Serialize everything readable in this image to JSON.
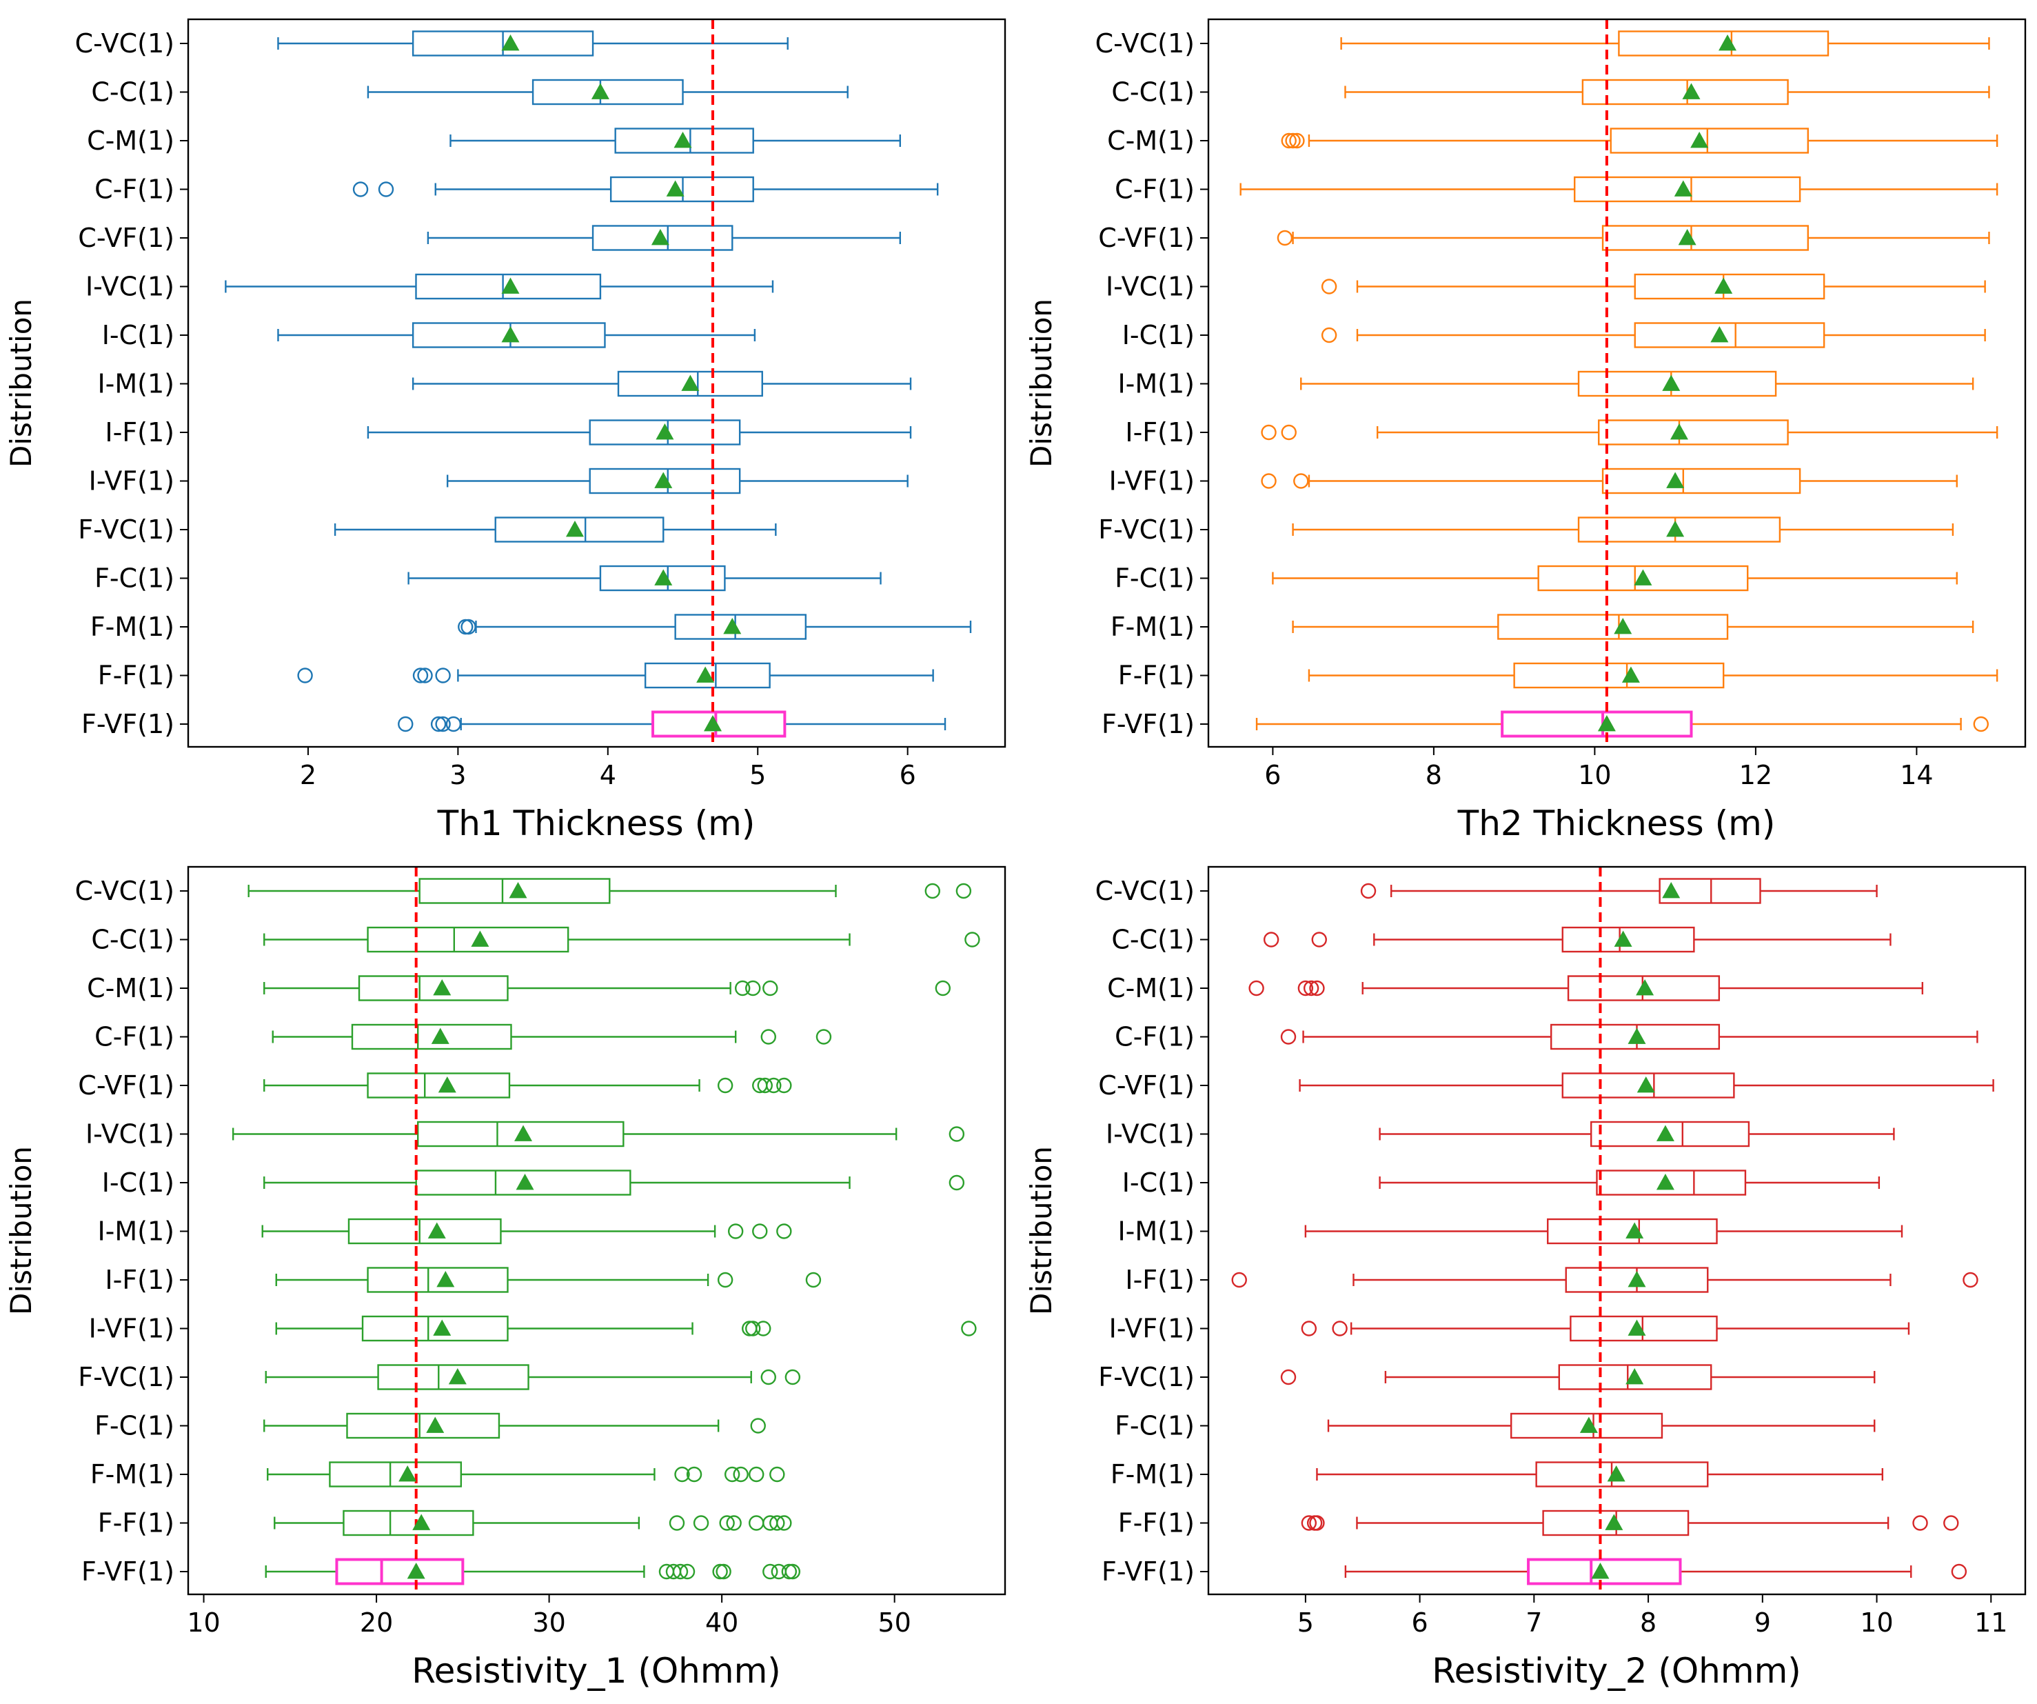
{
  "figure": {
    "ylabel": "Distribution"
  },
  "chart_data": [
    {
      "type": "boxplot",
      "orientation": "horizontal",
      "title": "",
      "xlabel": "Th1 Thickness (m)",
      "ylabel": "Distribution",
      "xlim": [
        1.2,
        6.65
      ],
      "xticks": [
        2,
        3,
        4,
        5,
        6
      ],
      "tick_labels": [
        "2",
        "3",
        "4",
        "5",
        "6"
      ],
      "color": "#1f77b4",
      "true_value": 4.7,
      "reference_line_color": "#ff0000",
      "mean_marker_color": "#2ca02c",
      "highlight_color": "#ff33cc",
      "categories": [
        "C-VC(1)",
        "C-C(1)",
        "C-M(1)",
        "C-F(1)",
        "C-VF(1)",
        "I-VC(1)",
        "I-C(1)",
        "I-M(1)",
        "I-F(1)",
        "I-VF(1)",
        "F-VC(1)",
        "F-C(1)",
        "F-M(1)",
        "F-F(1)",
        "F-VF(1)"
      ],
      "boxes": [
        {
          "whislo": 1.8,
          "q1": 2.7,
          "median": 3.3,
          "q3": 3.9,
          "whishi": 5.2,
          "mean": 3.35,
          "fliers": [],
          "highlight": false
        },
        {
          "whislo": 2.4,
          "q1": 3.5,
          "median": 3.95,
          "q3": 4.5,
          "whishi": 5.6,
          "mean": 3.95,
          "fliers": [],
          "highlight": false
        },
        {
          "whislo": 2.95,
          "q1": 4.05,
          "median": 4.55,
          "q3": 4.97,
          "whishi": 5.95,
          "mean": 4.5,
          "fliers": [],
          "highlight": false
        },
        {
          "whislo": 2.85,
          "q1": 4.02,
          "median": 4.5,
          "q3": 4.97,
          "whishi": 6.2,
          "mean": 4.45,
          "fliers": [
            2.35,
            2.52
          ],
          "highlight": false
        },
        {
          "whislo": 2.8,
          "q1": 3.9,
          "median": 4.4,
          "q3": 4.83,
          "whishi": 5.95,
          "mean": 4.35,
          "fliers": [],
          "highlight": false
        },
        {
          "whislo": 1.45,
          "q1": 2.72,
          "median": 3.3,
          "q3": 3.95,
          "whishi": 5.1,
          "mean": 3.35,
          "fliers": [],
          "highlight": false
        },
        {
          "whislo": 1.8,
          "q1": 2.7,
          "median": 3.35,
          "q3": 3.98,
          "whishi": 4.98,
          "mean": 3.35,
          "fliers": [],
          "highlight": false
        },
        {
          "whislo": 2.7,
          "q1": 4.07,
          "median": 4.6,
          "q3": 5.03,
          "whishi": 6.02,
          "mean": 4.55,
          "fliers": [],
          "highlight": false
        },
        {
          "whislo": 2.4,
          "q1": 3.88,
          "median": 4.4,
          "q3": 4.88,
          "whishi": 6.02,
          "mean": 4.38,
          "fliers": [],
          "highlight": false
        },
        {
          "whislo": 2.93,
          "q1": 3.88,
          "median": 4.4,
          "q3": 4.88,
          "whishi": 6.0,
          "mean": 4.37,
          "fliers": [],
          "highlight": false
        },
        {
          "whislo": 2.18,
          "q1": 3.25,
          "median": 3.85,
          "q3": 4.37,
          "whishi": 5.12,
          "mean": 3.78,
          "fliers": [],
          "highlight": false
        },
        {
          "whislo": 2.67,
          "q1": 3.95,
          "median": 4.4,
          "q3": 4.78,
          "whishi": 5.82,
          "mean": 4.37,
          "fliers": [],
          "highlight": false
        },
        {
          "whislo": 3.12,
          "q1": 4.45,
          "median": 4.85,
          "q3": 5.32,
          "whishi": 6.42,
          "mean": 4.83,
          "fliers": [
            3.05,
            3.07
          ],
          "highlight": false
        },
        {
          "whislo": 3.0,
          "q1": 4.25,
          "median": 4.72,
          "q3": 5.08,
          "whishi": 6.17,
          "mean": 4.65,
          "fliers": [
            1.98,
            2.75,
            2.78,
            2.9
          ],
          "highlight": false
        },
        {
          "whislo": 3.02,
          "q1": 4.3,
          "median": 4.72,
          "q3": 5.18,
          "whishi": 6.25,
          "mean": 4.7,
          "fliers": [
            2.65,
            2.87,
            2.9,
            2.97
          ],
          "highlight": true
        }
      ]
    },
    {
      "type": "boxplot",
      "orientation": "horizontal",
      "title": "",
      "xlabel": "Th2 Thickness (m)",
      "ylabel": "Distribution",
      "xlim": [
        5.2,
        15.35
      ],
      "xticks": [
        6,
        8,
        10,
        12,
        14
      ],
      "tick_labels": [
        "6",
        "8",
        "10",
        "12",
        "14"
      ],
      "color": "#ff7f0e",
      "true_value": 10.15,
      "reference_line_color": "#ff0000",
      "mean_marker_color": "#2ca02c",
      "highlight_color": "#ff33cc",
      "categories": [
        "C-VC(1)",
        "C-C(1)",
        "C-M(1)",
        "C-F(1)",
        "C-VF(1)",
        "I-VC(1)",
        "I-C(1)",
        "I-M(1)",
        "I-F(1)",
        "I-VF(1)",
        "F-VC(1)",
        "F-C(1)",
        "F-M(1)",
        "F-F(1)",
        "F-VF(1)"
      ],
      "boxes": [
        {
          "whislo": 6.85,
          "q1": 10.3,
          "median": 11.7,
          "q3": 12.9,
          "whishi": 14.9,
          "mean": 11.65,
          "fliers": [],
          "highlight": false
        },
        {
          "whislo": 6.9,
          "q1": 9.85,
          "median": 11.15,
          "q3": 12.4,
          "whishi": 14.9,
          "mean": 11.2,
          "fliers": [],
          "highlight": false
        },
        {
          "whislo": 6.45,
          "q1": 10.2,
          "median": 11.4,
          "q3": 12.65,
          "whishi": 15.0,
          "mean": 11.3,
          "fliers": [
            6.2,
            6.25,
            6.3
          ],
          "highlight": false
        },
        {
          "whislo": 5.6,
          "q1": 9.75,
          "median": 11.2,
          "q3": 12.55,
          "whishi": 15.0,
          "mean": 11.1,
          "fliers": [],
          "highlight": false
        },
        {
          "whislo": 6.25,
          "q1": 10.1,
          "median": 11.2,
          "q3": 12.65,
          "whishi": 14.9,
          "mean": 11.15,
          "fliers": [
            6.15
          ],
          "highlight": false
        },
        {
          "whislo": 7.05,
          "q1": 10.5,
          "median": 11.6,
          "q3": 12.85,
          "whishi": 14.85,
          "mean": 11.6,
          "fliers": [
            6.7
          ],
          "highlight": false
        },
        {
          "whislo": 7.05,
          "q1": 10.5,
          "median": 11.75,
          "q3": 12.85,
          "whishi": 14.85,
          "mean": 11.55,
          "fliers": [
            6.7
          ],
          "highlight": false
        },
        {
          "whislo": 6.35,
          "q1": 9.8,
          "median": 10.95,
          "q3": 12.25,
          "whishi": 14.7,
          "mean": 10.95,
          "fliers": [],
          "highlight": false
        },
        {
          "whislo": 7.3,
          "q1": 10.05,
          "median": 11.05,
          "q3": 12.4,
          "whishi": 15.0,
          "mean": 11.05,
          "fliers": [
            5.95,
            6.2
          ],
          "highlight": false
        },
        {
          "whislo": 6.45,
          "q1": 10.1,
          "median": 11.1,
          "q3": 12.55,
          "whishi": 14.5,
          "mean": 11.0,
          "fliers": [
            5.95,
            6.35
          ],
          "highlight": false
        },
        {
          "whislo": 6.25,
          "q1": 9.8,
          "median": 11.0,
          "q3": 12.3,
          "whishi": 14.45,
          "mean": 11.0,
          "fliers": [],
          "highlight": false
        },
        {
          "whislo": 6.0,
          "q1": 9.3,
          "median": 10.5,
          "q3": 11.9,
          "whishi": 14.5,
          "mean": 10.6,
          "fliers": [],
          "highlight": false
        },
        {
          "whislo": 6.25,
          "q1": 8.8,
          "median": 10.3,
          "q3": 11.65,
          "whishi": 14.7,
          "mean": 10.35,
          "fliers": [],
          "highlight": false
        },
        {
          "whislo": 6.45,
          "q1": 9.0,
          "median": 10.4,
          "q3": 11.6,
          "whishi": 15.0,
          "mean": 10.45,
          "fliers": [],
          "highlight": false
        },
        {
          "whislo": 5.8,
          "q1": 8.85,
          "median": 10.1,
          "q3": 11.2,
          "whishi": 14.55,
          "mean": 10.15,
          "fliers": [
            14.8
          ],
          "highlight": true
        }
      ]
    },
    {
      "type": "boxplot",
      "orientation": "horizontal",
      "title": "",
      "xlabel": "Resistivity_1 (Ohmm)",
      "ylabel": "Distribution",
      "xlim": [
        9.1,
        56.4
      ],
      "xticks": [
        10,
        20,
        30,
        40,
        50
      ],
      "tick_labels": [
        "10",
        "20",
        "30",
        "40",
        "50"
      ],
      "color": "#2ca02c",
      "true_value": 22.3,
      "reference_line_color": "#ff0000",
      "mean_marker_color": "#2ca02c",
      "highlight_color": "#ff33cc",
      "categories": [
        "C-VC(1)",
        "C-C(1)",
        "C-M(1)",
        "C-F(1)",
        "C-VF(1)",
        "I-VC(1)",
        "I-C(1)",
        "I-M(1)",
        "I-F(1)",
        "I-VF(1)",
        "F-VC(1)",
        "F-C(1)",
        "F-M(1)",
        "F-F(1)",
        "F-VF(1)"
      ],
      "boxes": [
        {
          "whislo": 12.6,
          "q1": 22.5,
          "median": 27.3,
          "q3": 33.5,
          "whishi": 46.6,
          "mean": 28.2,
          "fliers": [
            52.2,
            54.0
          ],
          "highlight": false
        },
        {
          "whislo": 13.5,
          "q1": 19.5,
          "median": 24.5,
          "q3": 31.1,
          "whishi": 47.4,
          "mean": 26.0,
          "fliers": [
            54.5
          ],
          "highlight": false
        },
        {
          "whislo": 13.5,
          "q1": 19.0,
          "median": 22.5,
          "q3": 27.6,
          "whishi": 40.5,
          "mean": 23.8,
          "fliers": [
            41.2,
            41.8,
            42.8,
            52.8
          ],
          "highlight": false
        },
        {
          "whislo": 14.0,
          "q1": 18.6,
          "median": 22.4,
          "q3": 27.8,
          "whishi": 40.8,
          "mean": 23.7,
          "fliers": [
            42.7,
            45.9
          ],
          "highlight": false
        },
        {
          "whislo": 13.5,
          "q1": 19.5,
          "median": 22.8,
          "q3": 27.7,
          "whishi": 38.7,
          "mean": 24.1,
          "fliers": [
            40.2,
            42.2,
            42.5,
            43.0,
            43.6
          ],
          "highlight": false
        },
        {
          "whislo": 11.7,
          "q1": 22.4,
          "median": 27.0,
          "q3": 34.3,
          "whishi": 50.1,
          "mean": 28.5,
          "fliers": [
            53.6
          ],
          "highlight": false
        },
        {
          "whislo": 13.5,
          "q1": 22.3,
          "median": 26.9,
          "q3": 34.7,
          "whishi": 47.4,
          "mean": 28.6,
          "fliers": [
            53.6
          ],
          "highlight": false
        },
        {
          "whislo": 13.4,
          "q1": 18.4,
          "median": 22.5,
          "q3": 27.2,
          "whishi": 39.6,
          "mean": 23.5,
          "fliers": [
            40.8,
            42.2,
            43.6
          ],
          "highlight": false
        },
        {
          "whislo": 14.2,
          "q1": 19.5,
          "median": 23.0,
          "q3": 27.6,
          "whishi": 39.2,
          "mean": 24.0,
          "fliers": [
            40.2,
            45.3
          ],
          "highlight": false
        },
        {
          "whislo": 14.2,
          "q1": 19.2,
          "median": 23.0,
          "q3": 27.6,
          "whishi": 38.3,
          "mean": 23.8,
          "fliers": [
            41.6,
            41.8,
            42.4,
            54.3
          ],
          "highlight": false
        },
        {
          "whislo": 13.6,
          "q1": 20.1,
          "median": 23.6,
          "q3": 28.8,
          "whishi": 41.7,
          "mean": 24.7,
          "fliers": [
            42.7,
            44.1
          ],
          "highlight": false
        },
        {
          "whislo": 13.5,
          "q1": 18.3,
          "median": 22.5,
          "q3": 27.1,
          "whishi": 39.8,
          "mean": 23.4,
          "fliers": [
            42.1
          ],
          "highlight": false
        },
        {
          "whislo": 13.7,
          "q1": 17.3,
          "median": 20.8,
          "q3": 24.9,
          "whishi": 36.1,
          "mean": 21.8,
          "fliers": [
            37.7,
            38.4,
            40.6,
            41.1,
            42.0,
            43.2
          ],
          "highlight": false
        },
        {
          "whislo": 14.1,
          "q1": 18.1,
          "median": 20.8,
          "q3": 25.6,
          "whishi": 35.2,
          "mean": 22.6,
          "fliers": [
            37.4,
            38.8,
            40.3,
            40.7,
            42.0,
            42.8,
            43.2,
            43.6
          ],
          "highlight": false
        },
        {
          "whislo": 13.6,
          "q1": 17.7,
          "median": 20.3,
          "q3": 25.0,
          "whishi": 35.5,
          "mean": 22.3,
          "fliers": [
            36.8,
            37.2,
            37.6,
            38.0,
            39.9,
            40.1,
            42.8,
            43.3,
            43.9,
            44.1
          ],
          "highlight": true
        }
      ]
    },
    {
      "type": "boxplot",
      "orientation": "horizontal",
      "title": "",
      "xlabel": "Resistivity_2 (Ohmm)",
      "ylabel": "Distribution",
      "xlim": [
        4.15,
        11.3
      ],
      "xticks": [
        5,
        6,
        7,
        8,
        9,
        10,
        11
      ],
      "tick_labels": [
        "5",
        "6",
        "7",
        "8",
        "9",
        "10",
        "11"
      ],
      "color": "#d62728",
      "true_value": 7.58,
      "reference_line_color": "#ff0000",
      "mean_marker_color": "#2ca02c",
      "highlight_color": "#ff33cc",
      "categories": [
        "C-VC(1)",
        "C-C(1)",
        "C-M(1)",
        "C-F(1)",
        "C-VF(1)",
        "I-VC(1)",
        "I-C(1)",
        "I-M(1)",
        "I-F(1)",
        "I-VF(1)",
        "F-VC(1)",
        "F-C(1)",
        "F-M(1)",
        "F-F(1)",
        "F-VF(1)"
      ],
      "boxes": [
        {
          "whislo": 5.75,
          "q1": 8.1,
          "median": 8.55,
          "q3": 8.98,
          "whishi": 10.0,
          "mean": 8.2,
          "fliers": [
            5.55
          ],
          "highlight": false
        },
        {
          "whislo": 5.6,
          "q1": 7.25,
          "median": 7.75,
          "q3": 8.4,
          "whishi": 10.12,
          "mean": 7.78,
          "fliers": [
            4.7,
            5.12
          ],
          "highlight": false
        },
        {
          "whislo": 5.5,
          "q1": 7.3,
          "median": 7.95,
          "q3": 8.62,
          "whishi": 10.4,
          "mean": 7.97,
          "fliers": [
            4.57,
            5.0,
            5.05,
            5.1
          ],
          "highlight": false
        },
        {
          "whislo": 4.98,
          "q1": 7.15,
          "median": 7.9,
          "q3": 8.62,
          "whishi": 10.88,
          "mean": 7.9,
          "fliers": [
            4.85
          ],
          "highlight": false
        },
        {
          "whislo": 4.95,
          "q1": 7.25,
          "median": 8.05,
          "q3": 8.75,
          "whishi": 11.02,
          "mean": 7.98,
          "fliers": [],
          "highlight": false
        },
        {
          "whislo": 5.65,
          "q1": 7.5,
          "median": 8.3,
          "q3": 8.88,
          "whishi": 10.15,
          "mean": 8.15,
          "fliers": [],
          "highlight": false
        },
        {
          "whislo": 5.65,
          "q1": 7.55,
          "median": 8.4,
          "q3": 8.85,
          "whishi": 10.02,
          "mean": 8.15,
          "fliers": [],
          "highlight": false
        },
        {
          "whislo": 5.0,
          "q1": 7.12,
          "median": 7.92,
          "q3": 8.6,
          "whishi": 10.22,
          "mean": 7.88,
          "fliers": [],
          "highlight": false
        },
        {
          "whislo": 5.42,
          "q1": 7.28,
          "median": 7.9,
          "q3": 8.52,
          "whishi": 10.12,
          "mean": 7.9,
          "fliers": [
            4.42,
            10.82
          ],
          "highlight": false
        },
        {
          "whislo": 5.4,
          "q1": 7.32,
          "median": 7.95,
          "q3": 8.6,
          "whishi": 10.28,
          "mean": 7.9,
          "fliers": [
            5.03,
            5.3
          ],
          "highlight": false
        },
        {
          "whislo": 5.7,
          "q1": 7.22,
          "median": 7.82,
          "q3": 8.55,
          "whishi": 9.98,
          "mean": 7.88,
          "fliers": [
            4.85
          ],
          "highlight": false
        },
        {
          "whislo": 5.2,
          "q1": 6.8,
          "median": 7.52,
          "q3": 8.12,
          "whishi": 9.98,
          "mean": 7.48,
          "fliers": [],
          "highlight": false
        },
        {
          "whislo": 5.1,
          "q1": 7.02,
          "median": 7.68,
          "q3": 8.52,
          "whishi": 10.05,
          "mean": 7.72,
          "fliers": [],
          "highlight": false
        },
        {
          "whislo": 5.45,
          "q1": 7.08,
          "median": 7.72,
          "q3": 8.35,
          "whishi": 10.1,
          "mean": 7.7,
          "fliers": [
            5.03,
            5.08,
            5.1,
            10.38,
            10.65
          ],
          "highlight": false
        },
        {
          "whislo": 5.35,
          "q1": 6.95,
          "median": 7.5,
          "q3": 8.28,
          "whishi": 10.3,
          "mean": 7.58,
          "fliers": [
            10.72
          ],
          "highlight": true
        }
      ]
    }
  ]
}
